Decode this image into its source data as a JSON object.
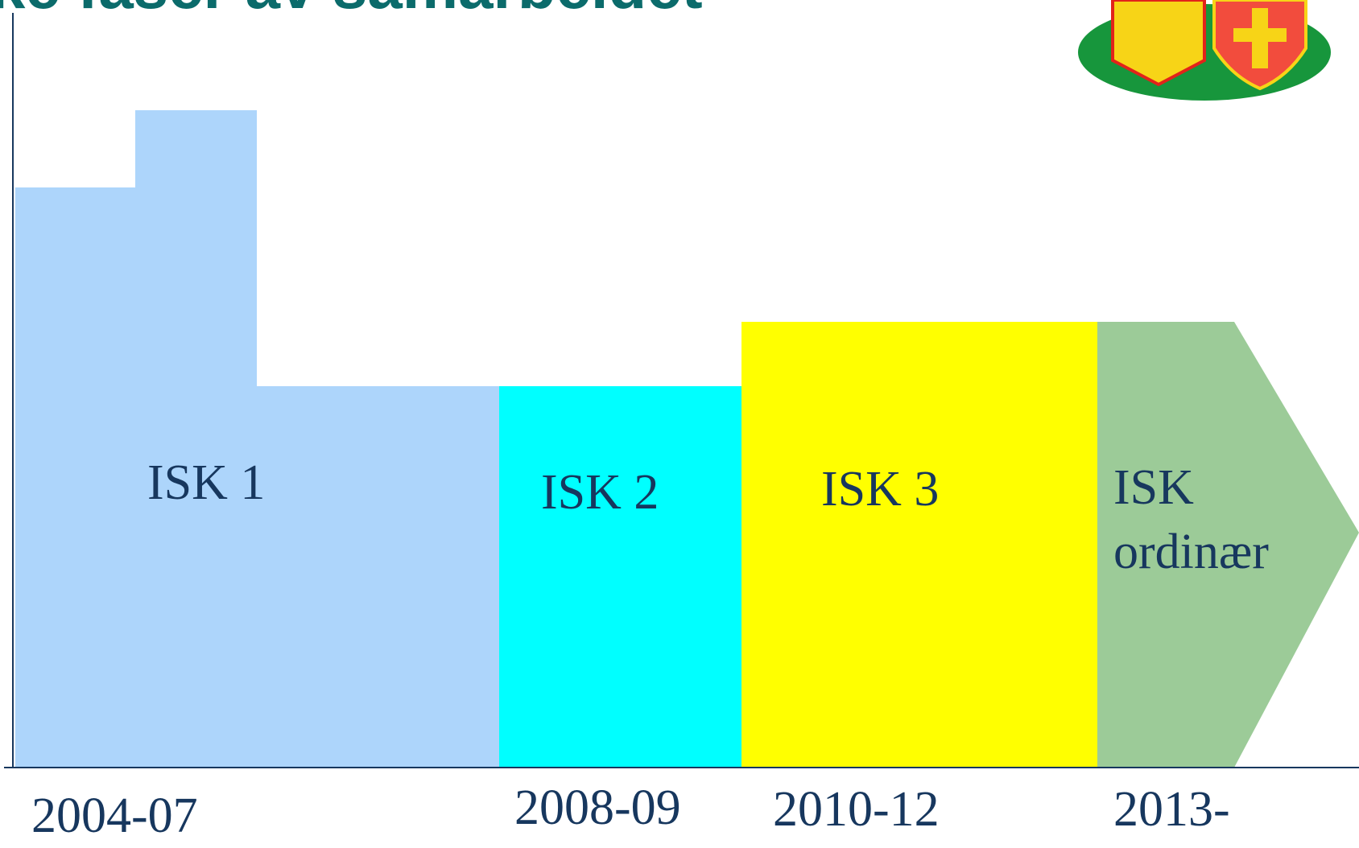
{
  "title": "ke faser av samarbeidet",
  "phases": [
    {
      "label": "ISK 1",
      "period": "2004-07"
    },
    {
      "label": "ISK 2",
      "period": "2008-09"
    },
    {
      "label": "ISK 3",
      "period": "2010-12"
    },
    {
      "label": "ISK ordinær",
      "period": "2013-"
    }
  ]
}
